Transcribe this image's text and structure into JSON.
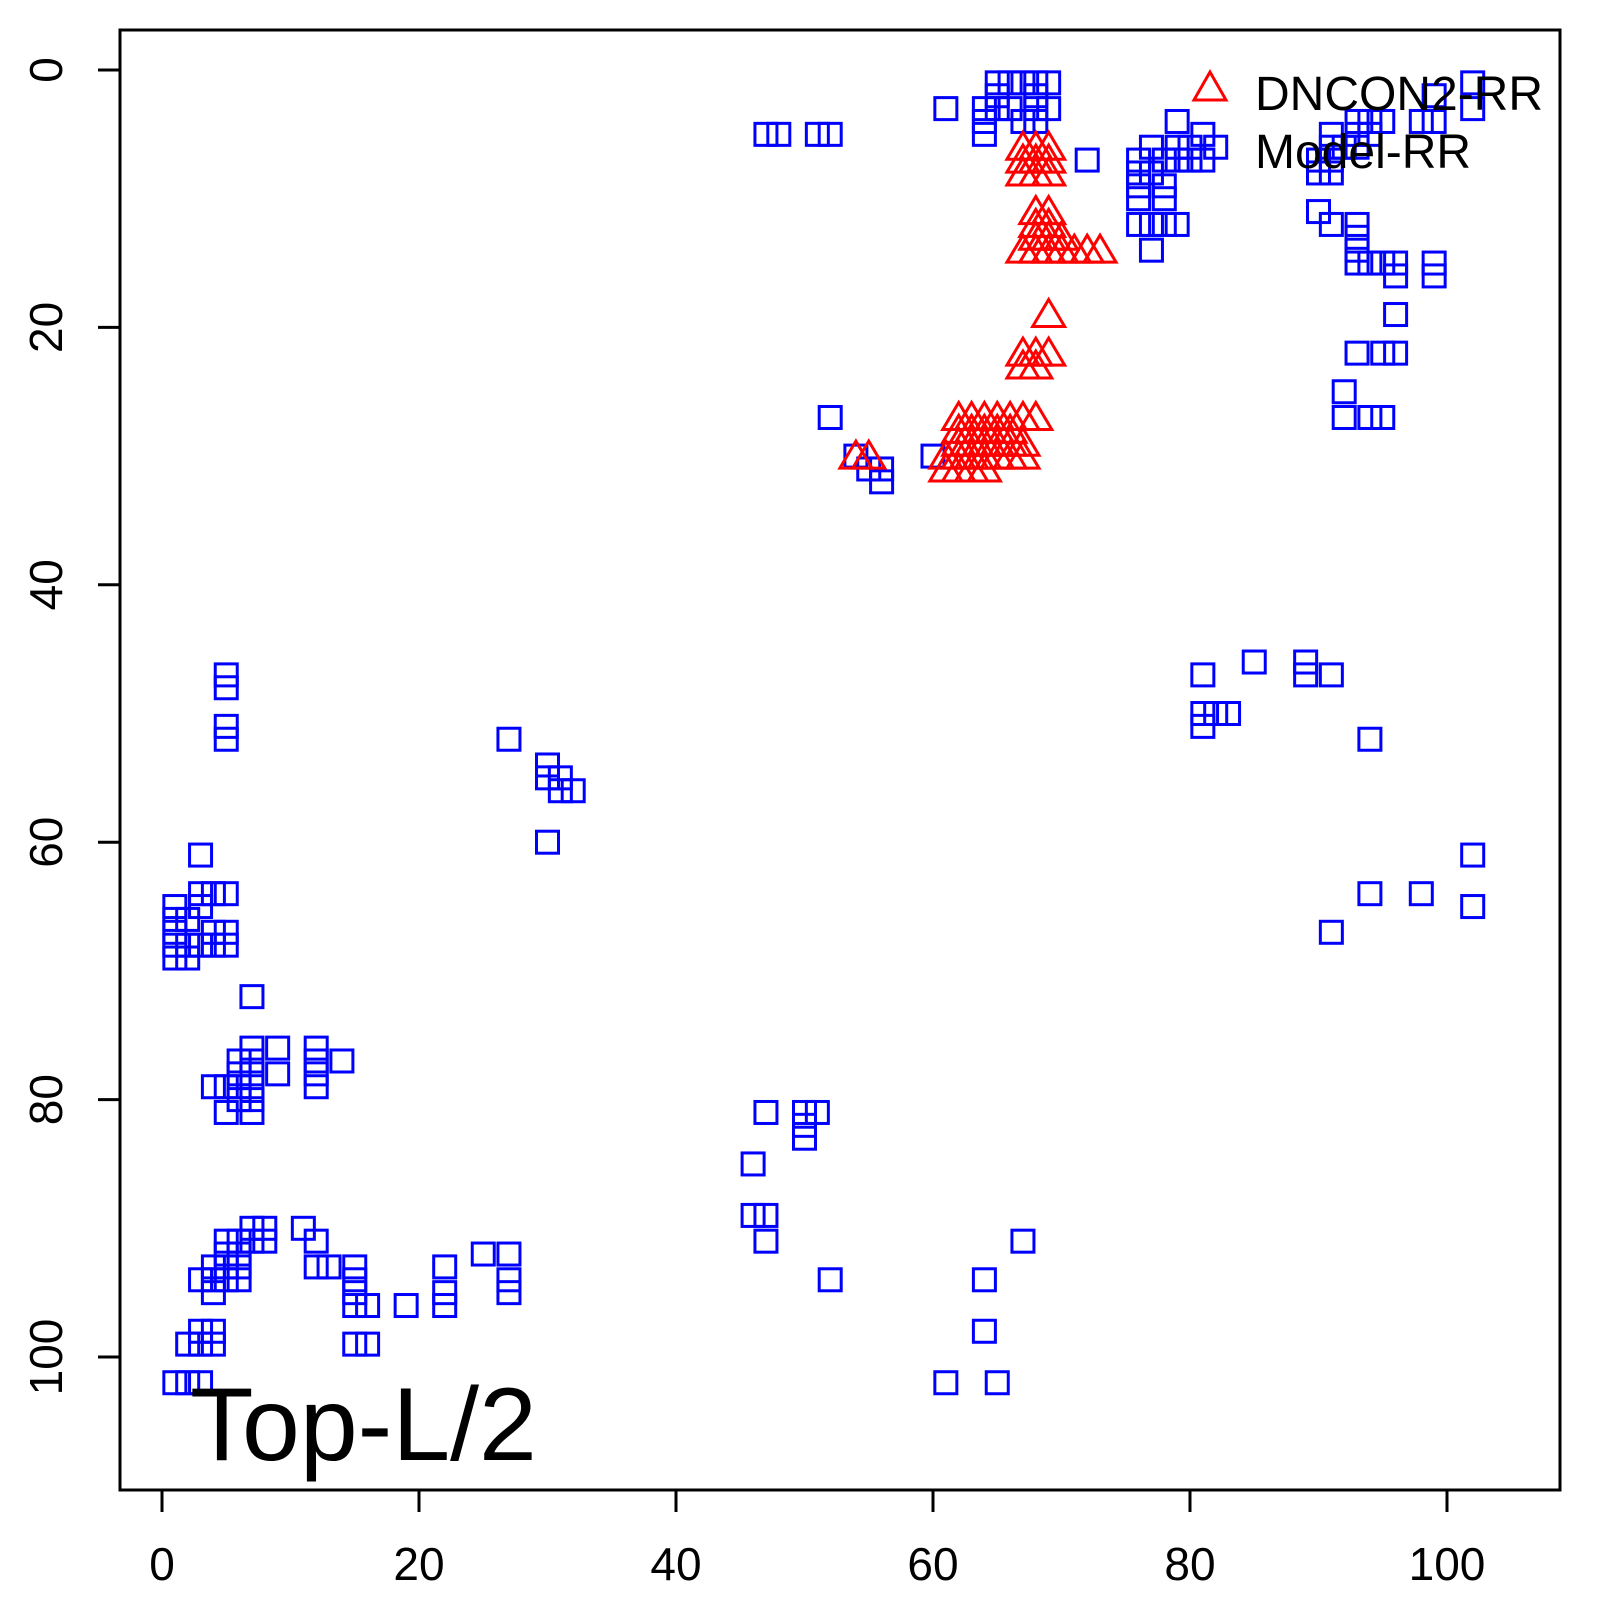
{
  "chart_data": {
    "type": "scatter",
    "title": "",
    "xlabel": "",
    "ylabel": "",
    "xlim": [
      -3,
      110
    ],
    "ylim": [
      110,
      -3
    ],
    "y_axis_inverted": true,
    "x_ticks": [
      "0",
      "20",
      "40",
      "60",
      "80",
      "100"
    ],
    "y_ticks": [
      "0",
      "20",
      "40",
      "60",
      "80",
      "100"
    ],
    "annotation": "Top-L/2",
    "legend": {
      "position": "top-right",
      "entries": [
        {
          "label": "DNCON2-RR",
          "marker": "triangle",
          "color": "#ff0000"
        },
        {
          "label": "Model-RR",
          "marker": "square",
          "color": "#0000ff"
        }
      ]
    },
    "series": [
      {
        "name": "DNCON2-RR",
        "marker": "triangle",
        "color": "#ff0000",
        "points": [
          [
            67,
            6
          ],
          [
            68,
            6
          ],
          [
            69,
            6
          ],
          [
            67,
            7
          ],
          [
            68,
            7
          ],
          [
            69,
            7
          ],
          [
            67,
            8
          ],
          [
            68,
            8
          ],
          [
            69,
            8
          ],
          [
            68,
            11
          ],
          [
            69,
            11
          ],
          [
            68,
            12
          ],
          [
            69,
            12
          ],
          [
            68,
            13
          ],
          [
            69,
            13
          ],
          [
            70,
            13
          ],
          [
            67,
            14
          ],
          [
            68,
            14
          ],
          [
            69,
            14
          ],
          [
            70,
            14
          ],
          [
            71,
            14
          ],
          [
            72,
            14
          ],
          [
            73,
            14
          ],
          [
            69,
            19
          ],
          [
            67,
            22
          ],
          [
            68,
            22
          ],
          [
            69,
            22
          ],
          [
            67,
            23
          ],
          [
            68,
            23
          ],
          [
            62,
            27
          ],
          [
            63,
            27
          ],
          [
            64,
            27
          ],
          [
            65,
            27
          ],
          [
            66,
            27
          ],
          [
            67,
            27
          ],
          [
            68,
            27
          ],
          [
            62,
            28
          ],
          [
            63,
            28
          ],
          [
            64,
            28
          ],
          [
            65,
            28
          ],
          [
            66,
            28
          ],
          [
            62,
            29
          ],
          [
            63,
            29
          ],
          [
            64,
            29
          ],
          [
            65,
            29
          ],
          [
            66,
            29
          ],
          [
            67,
            29
          ],
          [
            54,
            30
          ],
          [
            55,
            30
          ],
          [
            61,
            30
          ],
          [
            62,
            30
          ],
          [
            63,
            30
          ],
          [
            64,
            30
          ],
          [
            65,
            30
          ],
          [
            66,
            30
          ],
          [
            67,
            30
          ],
          [
            61,
            31
          ],
          [
            62,
            31
          ],
          [
            63,
            31
          ],
          [
            64,
            31
          ]
        ]
      },
      {
        "name": "Model-RR",
        "marker": "square",
        "color": "#0000ff",
        "points": [
          [
            65,
            1
          ],
          [
            66,
            1
          ],
          [
            67,
            1
          ],
          [
            68,
            1
          ],
          [
            69,
            1
          ],
          [
            102,
            1
          ],
          [
            61,
            3
          ],
          [
            64,
            3
          ],
          [
            65,
            3
          ],
          [
            66,
            3
          ],
          [
            68,
            3
          ],
          [
            69,
            3
          ],
          [
            65,
            2
          ],
          [
            68,
            2
          ],
          [
            99,
            2
          ],
          [
            102,
            3
          ],
          [
            64,
            4
          ],
          [
            67,
            4
          ],
          [
            68,
            4
          ],
          [
            79,
            4
          ],
          [
            93,
            4
          ],
          [
            94,
            4
          ],
          [
            95,
            4
          ],
          [
            98,
            4
          ],
          [
            99,
            4
          ],
          [
            47,
            5
          ],
          [
            48,
            5
          ],
          [
            51,
            5
          ],
          [
            52,
            5
          ],
          [
            64,
            5
          ],
          [
            81,
            5
          ],
          [
            91,
            5
          ],
          [
            93,
            5
          ],
          [
            94,
            5
          ],
          [
            79,
            6
          ],
          [
            80,
            6
          ],
          [
            82,
            6
          ],
          [
            91,
            6
          ],
          [
            92,
            6
          ],
          [
            93,
            6
          ],
          [
            77,
            6
          ],
          [
            72,
            7
          ],
          [
            76,
            7
          ],
          [
            78,
            7
          ],
          [
            79,
            7
          ],
          [
            80,
            7
          ],
          [
            81,
            7
          ],
          [
            90,
            7
          ],
          [
            91,
            7
          ],
          [
            76,
            8
          ],
          [
            77,
            8
          ],
          [
            90,
            8
          ],
          [
            91,
            8
          ],
          [
            76,
            9
          ],
          [
            78,
            9
          ],
          [
            76,
            10
          ],
          [
            78,
            10
          ],
          [
            90,
            11
          ],
          [
            91,
            12
          ],
          [
            76,
            12
          ],
          [
            77,
            12
          ],
          [
            78,
            12
          ],
          [
            79,
            12
          ],
          [
            93,
            12
          ],
          [
            93,
            13
          ],
          [
            93,
            14
          ],
          [
            77,
            14
          ],
          [
            93,
            15
          ],
          [
            94,
            15
          ],
          [
            95,
            15
          ],
          [
            96,
            15
          ],
          [
            99,
            15
          ],
          [
            96,
            16
          ],
          [
            99,
            16
          ],
          [
            96,
            19
          ],
          [
            93,
            22
          ],
          [
            95,
            22
          ],
          [
            96,
            22
          ],
          [
            92,
            25
          ],
          [
            92,
            27
          ],
          [
            94,
            27
          ],
          [
            95,
            27
          ],
          [
            52,
            27
          ],
          [
            54,
            30
          ],
          [
            55,
            31
          ],
          [
            56,
            31
          ],
          [
            56,
            32
          ],
          [
            60,
            30
          ],
          [
            5,
            47
          ],
          [
            5,
            48
          ],
          [
            85,
            46
          ],
          [
            89,
            46
          ],
          [
            89,
            47
          ],
          [
            91,
            47
          ],
          [
            81,
            47
          ],
          [
            5,
            51
          ],
          [
            5,
            52
          ],
          [
            81,
            50
          ],
          [
            82,
            50
          ],
          [
            83,
            50
          ],
          [
            81,
            51
          ],
          [
            27,
            52
          ],
          [
            94,
            52
          ],
          [
            30,
            54
          ],
          [
            30,
            55
          ],
          [
            31,
            55
          ],
          [
            31,
            56
          ],
          [
            32,
            56
          ],
          [
            3,
            61
          ],
          [
            30,
            60
          ],
          [
            102,
            61
          ],
          [
            3,
            64
          ],
          [
            4,
            64
          ],
          [
            5,
            64
          ],
          [
            94,
            64
          ],
          [
            98,
            64
          ],
          [
            1,
            65
          ],
          [
            3,
            65
          ],
          [
            102,
            65
          ],
          [
            1,
            66
          ],
          [
            2,
            66
          ],
          [
            1,
            67
          ],
          [
            4,
            67
          ],
          [
            5,
            67
          ],
          [
            91,
            67
          ],
          [
            1,
            68
          ],
          [
            2,
            68
          ],
          [
            3,
            68
          ],
          [
            4,
            68
          ],
          [
            5,
            68
          ],
          [
            1,
            69
          ],
          [
            2,
            69
          ],
          [
            7,
            72
          ],
          [
            7,
            76
          ],
          [
            9,
            76
          ],
          [
            12,
            76
          ],
          [
            6,
            77
          ],
          [
            7,
            77
          ],
          [
            12,
            77
          ],
          [
            14,
            77
          ],
          [
            6,
            78
          ],
          [
            7,
            78
          ],
          [
            9,
            78
          ],
          [
            12,
            78
          ],
          [
            4,
            79
          ],
          [
            5,
            79
          ],
          [
            6,
            79
          ],
          [
            7,
            79
          ],
          [
            12,
            79
          ],
          [
            6,
            80
          ],
          [
            7,
            80
          ],
          [
            5,
            81
          ],
          [
            7,
            81
          ],
          [
            47,
            81
          ],
          [
            50,
            81
          ],
          [
            51,
            81
          ],
          [
            50,
            82
          ],
          [
            50,
            83
          ],
          [
            46,
            85
          ],
          [
            46,
            89
          ],
          [
            47,
            89
          ],
          [
            7,
            90
          ],
          [
            8,
            90
          ],
          [
            11,
            90
          ],
          [
            5,
            91
          ],
          [
            6,
            91
          ],
          [
            7,
            91
          ],
          [
            8,
            91
          ],
          [
            12,
            91
          ],
          [
            47,
            91
          ],
          [
            67,
            91
          ],
          [
            5,
            92
          ],
          [
            6,
            92
          ],
          [
            25,
            92
          ],
          [
            27,
            92
          ],
          [
            4,
            93
          ],
          [
            5,
            93
          ],
          [
            6,
            93
          ],
          [
            12,
            93
          ],
          [
            13,
            93
          ],
          [
            15,
            93
          ],
          [
            22,
            93
          ],
          [
            3,
            94
          ],
          [
            4,
            94
          ],
          [
            5,
            94
          ],
          [
            6,
            94
          ],
          [
            15,
            94
          ],
          [
            27,
            94
          ],
          [
            52,
            94
          ],
          [
            64,
            94
          ],
          [
            4,
            95
          ],
          [
            15,
            95
          ],
          [
            22,
            95
          ],
          [
            27,
            95
          ],
          [
            15,
            96
          ],
          [
            16,
            96
          ],
          [
            19,
            96
          ],
          [
            22,
            96
          ],
          [
            3,
            98
          ],
          [
            4,
            98
          ],
          [
            64,
            98
          ],
          [
            2,
            99
          ],
          [
            3,
            99
          ],
          [
            4,
            99
          ],
          [
            15,
            99
          ],
          [
            16,
            99
          ],
          [
            1,
            102
          ],
          [
            2,
            102
          ],
          [
            3,
            102
          ],
          [
            61,
            102
          ],
          [
            65,
            102
          ]
        ]
      }
    ]
  }
}
